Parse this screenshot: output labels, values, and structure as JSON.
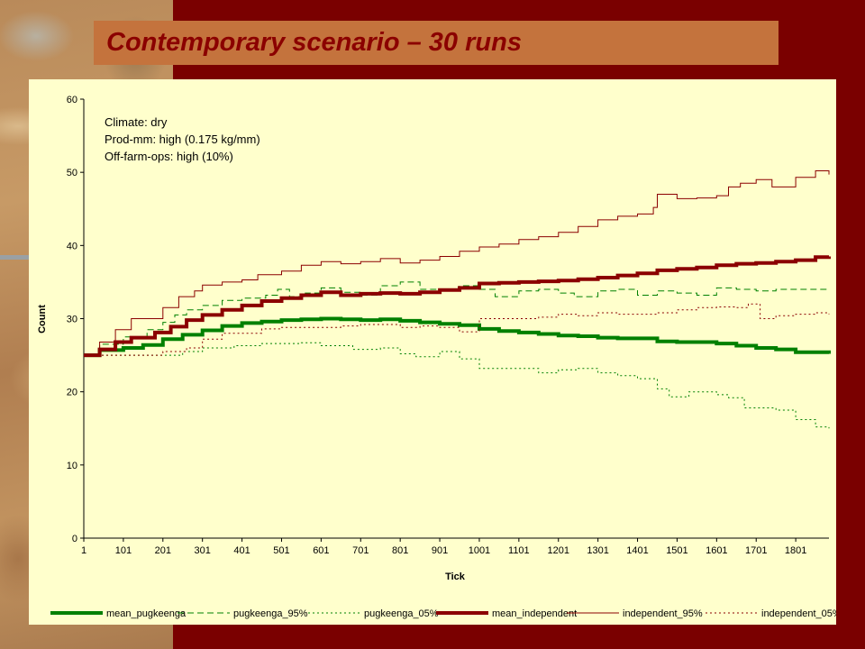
{
  "slide": {
    "title": "Contemporary scenario – 30 runs",
    "colors": {
      "background": "#7a0000",
      "banner": "#c4733d",
      "title": "#8b0000",
      "chart_panel": "#ffffcc"
    }
  },
  "chart_data": {
    "type": "line",
    "title": "",
    "xlabel": "Tick",
    "ylabel": "Count",
    "xlim": [
      1,
      1885
    ],
    "ylim": [
      0,
      60
    ],
    "x_ticks": [
      1,
      101,
      201,
      301,
      401,
      501,
      601,
      701,
      801,
      901,
      1001,
      1101,
      1201,
      1301,
      1401,
      1501,
      1601,
      1701,
      1801
    ],
    "y_ticks": [
      0,
      10,
      20,
      30,
      40,
      50,
      60
    ],
    "grid": false,
    "legend_position": "bottom",
    "annotation": [
      "Climate: dry",
      "Prod-mm: high (0.175 kg/mm)",
      "Off-farm-ops: high (10%)"
    ],
    "series": [
      {
        "name": "mean_pugkeenga",
        "color": "#008000",
        "style": "solid",
        "width": 4,
        "points": [
          [
            1,
            25
          ],
          [
            41,
            25.7
          ],
          [
            101,
            26
          ],
          [
            151,
            26.4
          ],
          [
            201,
            27.2
          ],
          [
            251,
            27.8
          ],
          [
            301,
            28.4
          ],
          [
            351,
            29
          ],
          [
            401,
            29.4
          ],
          [
            451,
            29.6
          ],
          [
            501,
            29.8
          ],
          [
            551,
            29.9
          ],
          [
            601,
            30
          ],
          [
            651,
            29.9
          ],
          [
            701,
            29.8
          ],
          [
            751,
            29.9
          ],
          [
            801,
            29.7
          ],
          [
            851,
            29.5
          ],
          [
            901,
            29.3
          ],
          [
            951,
            29.1
          ],
          [
            1001,
            28.6
          ],
          [
            1051,
            28.3
          ],
          [
            1101,
            28.1
          ],
          [
            1151,
            27.9
          ],
          [
            1201,
            27.7
          ],
          [
            1251,
            27.6
          ],
          [
            1301,
            27.4
          ],
          [
            1351,
            27.3
          ],
          [
            1401,
            27.3
          ],
          [
            1451,
            26.9
          ],
          [
            1501,
            26.8
          ],
          [
            1551,
            26.8
          ],
          [
            1601,
            26.6
          ],
          [
            1651,
            26.3
          ],
          [
            1701,
            26
          ],
          [
            1751,
            25.8
          ],
          [
            1801,
            25.4
          ],
          [
            1885,
            25.2
          ]
        ]
      },
      {
        "name": "pugkeenga_95%",
        "color": "#008000",
        "style": "dashed",
        "width": 1,
        "points": [
          [
            1,
            25
          ],
          [
            41,
            26.5
          ],
          [
            101,
            27.5
          ],
          [
            161,
            28.5
          ],
          [
            201,
            29.5
          ],
          [
            231,
            30.5
          ],
          [
            261,
            31.2
          ],
          [
            301,
            31.8
          ],
          [
            351,
            32.5
          ],
          [
            401,
            32.8
          ],
          [
            461,
            33.2
          ],
          [
            491,
            34
          ],
          [
            521,
            33
          ],
          [
            561,
            33.5
          ],
          [
            601,
            34.2
          ],
          [
            651,
            33.6
          ],
          [
            701,
            33.2
          ],
          [
            751,
            34.5
          ],
          [
            801,
            35
          ],
          [
            851,
            34
          ],
          [
            901,
            33.8
          ],
          [
            951,
            34.5
          ],
          [
            1001,
            34
          ],
          [
            1041,
            33
          ],
          [
            1101,
            33.8
          ],
          [
            1151,
            34
          ],
          [
            1201,
            33.5
          ],
          [
            1241,
            33
          ],
          [
            1301,
            33.8
          ],
          [
            1351,
            34
          ],
          [
            1401,
            33.2
          ],
          [
            1451,
            33.8
          ],
          [
            1501,
            33.5
          ],
          [
            1551,
            33.2
          ],
          [
            1601,
            34.2
          ],
          [
            1651,
            34
          ],
          [
            1701,
            33.8
          ],
          [
            1751,
            34
          ],
          [
            1885,
            34
          ]
        ]
      },
      {
        "name": "pugkeenga_05%",
        "color": "#008000",
        "style": "dotted",
        "width": 1,
        "points": [
          [
            1,
            25
          ],
          [
            251,
            25.5
          ],
          [
            301,
            26
          ],
          [
            381,
            26.3
          ],
          [
            451,
            26.6
          ],
          [
            551,
            26.7
          ],
          [
            601,
            26.3
          ],
          [
            681,
            25.8
          ],
          [
            751,
            26
          ],
          [
            801,
            25.2
          ],
          [
            841,
            24.8
          ],
          [
            901,
            25.5
          ],
          [
            951,
            24.5
          ],
          [
            1001,
            23.2
          ],
          [
            1101,
            23.2
          ],
          [
            1151,
            22.6
          ],
          [
            1201,
            23
          ],
          [
            1251,
            23.2
          ],
          [
            1301,
            22.6
          ],
          [
            1351,
            22.2
          ],
          [
            1401,
            21.8
          ],
          [
            1451,
            20.4
          ],
          [
            1481,
            19.3
          ],
          [
            1531,
            20
          ],
          [
            1601,
            19.6
          ],
          [
            1631,
            19.2
          ],
          [
            1671,
            17.8
          ],
          [
            1751,
            17.5
          ],
          [
            1801,
            16.2
          ],
          [
            1851,
            15.2
          ],
          [
            1885,
            15
          ]
        ]
      },
      {
        "name": "mean_independent",
        "color": "#8b0000",
        "style": "solid",
        "width": 4,
        "points": [
          [
            1,
            25
          ],
          [
            41,
            25.8
          ],
          [
            81,
            26.8
          ],
          [
            121,
            27.4
          ],
          [
            181,
            28.1
          ],
          [
            221,
            28.9
          ],
          [
            261,
            29.8
          ],
          [
            301,
            30.5
          ],
          [
            351,
            31.2
          ],
          [
            401,
            31.8
          ],
          [
            451,
            32.4
          ],
          [
            501,
            32.8
          ],
          [
            551,
            33.2
          ],
          [
            601,
            33.6
          ],
          [
            651,
            33.2
          ],
          [
            701,
            33.4
          ],
          [
            751,
            33.5
          ],
          [
            801,
            33.4
          ],
          [
            851,
            33.6
          ],
          [
            901,
            33.9
          ],
          [
            951,
            34.2
          ],
          [
            1001,
            34.8
          ],
          [
            1051,
            34.9
          ],
          [
            1101,
            35
          ],
          [
            1151,
            35.1
          ],
          [
            1201,
            35.2
          ],
          [
            1251,
            35.4
          ],
          [
            1301,
            35.6
          ],
          [
            1351,
            35.9
          ],
          [
            1401,
            36.2
          ],
          [
            1451,
            36.6
          ],
          [
            1501,
            36.8
          ],
          [
            1551,
            37
          ],
          [
            1601,
            37.3
          ],
          [
            1651,
            37.5
          ],
          [
            1701,
            37.6
          ],
          [
            1751,
            37.8
          ],
          [
            1801,
            38
          ],
          [
            1851,
            38.4
          ],
          [
            1885,
            38.5
          ]
        ]
      },
      {
        "name": "independent_95%",
        "color": "#8b0000",
        "style": "solid",
        "width": 1,
        "points": [
          [
            1,
            25
          ],
          [
            41,
            26.8
          ],
          [
            81,
            28.5
          ],
          [
            121,
            30
          ],
          [
            201,
            31.5
          ],
          [
            241,
            33
          ],
          [
            281,
            33.8
          ],
          [
            301,
            34.6
          ],
          [
            351,
            35
          ],
          [
            401,
            35.3
          ],
          [
            441,
            36
          ],
          [
            501,
            36.5
          ],
          [
            551,
            37.3
          ],
          [
            601,
            37.8
          ],
          [
            651,
            37.5
          ],
          [
            701,
            37.8
          ],
          [
            751,
            38.2
          ],
          [
            801,
            37.6
          ],
          [
            851,
            38
          ],
          [
            901,
            38.5
          ],
          [
            951,
            39.2
          ],
          [
            1001,
            39.8
          ],
          [
            1051,
            40.2
          ],
          [
            1101,
            40.8
          ],
          [
            1151,
            41.2
          ],
          [
            1201,
            41.8
          ],
          [
            1251,
            42.6
          ],
          [
            1301,
            43.5
          ],
          [
            1351,
            44
          ],
          [
            1401,
            44.3
          ],
          [
            1441,
            45.2
          ],
          [
            1451,
            47
          ],
          [
            1501,
            46.4
          ],
          [
            1551,
            46.5
          ],
          [
            1601,
            46.8
          ],
          [
            1631,
            48
          ],
          [
            1661,
            48.5
          ],
          [
            1701,
            49
          ],
          [
            1741,
            48
          ],
          [
            1801,
            49.3
          ],
          [
            1851,
            50.2
          ],
          [
            1885,
            49.7
          ]
        ]
      },
      {
        "name": "independent_05%",
        "color": "#8b0000",
        "style": "dotted",
        "width": 1,
        "points": [
          [
            1,
            25
          ],
          [
            201,
            25.5
          ],
          [
            261,
            26
          ],
          [
            301,
            27.2
          ],
          [
            351,
            28
          ],
          [
            451,
            28.6
          ],
          [
            501,
            28.8
          ],
          [
            601,
            28.8
          ],
          [
            651,
            29
          ],
          [
            701,
            29.2
          ],
          [
            801,
            28.8
          ],
          [
            851,
            29
          ],
          [
            901,
            28.8
          ],
          [
            951,
            28.2
          ],
          [
            1001,
            30
          ],
          [
            1101,
            30
          ],
          [
            1151,
            30.2
          ],
          [
            1201,
            30.6
          ],
          [
            1251,
            30.4
          ],
          [
            1301,
            30.8
          ],
          [
            1351,
            30.6
          ],
          [
            1401,
            30.6
          ],
          [
            1451,
            30.8
          ],
          [
            1501,
            31.2
          ],
          [
            1551,
            31.5
          ],
          [
            1601,
            31.6
          ],
          [
            1651,
            31.5
          ],
          [
            1681,
            32
          ],
          [
            1711,
            30
          ],
          [
            1751,
            30.4
          ],
          [
            1801,
            30.6
          ],
          [
            1851,
            30.8
          ],
          [
            1885,
            30.6
          ]
        ]
      }
    ]
  }
}
